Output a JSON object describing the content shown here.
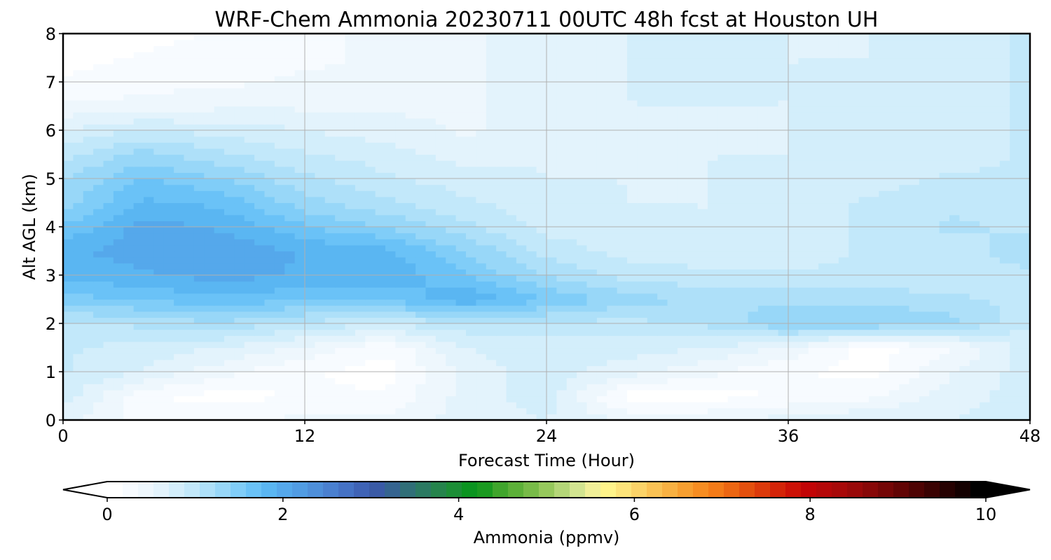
{
  "chart_data": {
    "type": "heatmap",
    "title": "WRF-Chem Ammonia  20230711 00UTC 48h fcst at Houston UH",
    "xlabel": "Forecast Time (Hour)",
    "ylabel": "Alt AGL (km)",
    "xlim": [
      0,
      48
    ],
    "ylim": [
      0,
      8
    ],
    "xticks": [
      "0",
      "12",
      "24",
      "36",
      "48"
    ],
    "yticks": [
      "0",
      "1",
      "2",
      "3",
      "4",
      "5",
      "6",
      "7",
      "8"
    ],
    "grid": true,
    "x": [
      0,
      4,
      8,
      12,
      16,
      20,
      24,
      28,
      32,
      36,
      40,
      44,
      48
    ],
    "y": [
      0,
      0.5,
      1,
      1.5,
      2,
      2.5,
      3,
      3.5,
      4,
      4.5,
      5,
      5.5,
      6,
      6.5,
      7,
      7.5,
      8
    ],
    "z": [
      [
        0.6,
        0.3,
        0.3,
        0.4,
        0.4,
        0.6,
        0.7,
        0.5,
        0.5,
        0.6,
        0.7,
        0.7,
        0.8
      ],
      [
        0.8,
        0.2,
        0.1,
        0.2,
        0.2,
        0.6,
        0.8,
        0.1,
        0.1,
        0.2,
        0.3,
        0.6,
        0.8
      ],
      [
        0.9,
        0.7,
        0.4,
        0.2,
        0.1,
        0.6,
        0.8,
        0.6,
        0.4,
        0.2,
        0.1,
        0.5,
        0.8
      ],
      [
        0.9,
        0.8,
        0.7,
        0.5,
        0.2,
        0.7,
        0.8,
        0.8,
        0.7,
        0.5,
        0.1,
        0.3,
        0.8
      ],
      [
        1.0,
        1.1,
        1.2,
        1.0,
        0.9,
        1.0,
        1.0,
        1.0,
        1.1,
        1.4,
        1.4,
        1.3,
        0.9
      ],
      [
        1.5,
        1.6,
        1.7,
        1.6,
        1.6,
        1.9,
        1.6,
        1.3,
        1.2,
        1.2,
        1.2,
        1.1,
        1.0
      ],
      [
        1.8,
        1.9,
        2.0,
        1.9,
        1.9,
        1.6,
        1.2,
        1.0,
        0.9,
        0.9,
        0.9,
        0.9,
        1.0
      ],
      [
        1.9,
        2.0,
        2.1,
        1.9,
        1.8,
        1.4,
        1.0,
        0.8,
        0.8,
        0.8,
        0.9,
        0.9,
        1.2
      ],
      [
        1.6,
        2.0,
        1.9,
        1.6,
        1.4,
        1.1,
        0.8,
        0.8,
        0.7,
        0.8,
        0.9,
        1.1,
        1.0
      ],
      [
        1.3,
        1.8,
        1.7,
        1.3,
        1.1,
        0.9,
        0.8,
        0.7,
        0.7,
        0.8,
        0.9,
        1.0,
        0.9
      ],
      [
        1.2,
        1.6,
        1.4,
        1.1,
        0.9,
        0.8,
        0.7,
        0.7,
        0.7,
        0.8,
        0.8,
        0.9,
        0.9
      ],
      [
        1.0,
        1.3,
        1.1,
        0.9,
        0.8,
        0.6,
        0.7,
        0.7,
        0.7,
        0.7,
        0.8,
        0.8,
        0.9
      ],
      [
        0.7,
        0.9,
        0.8,
        0.7,
        0.6,
        0.5,
        0.6,
        0.7,
        0.7,
        0.7,
        0.8,
        0.8,
        0.9
      ],
      [
        0.4,
        0.4,
        0.5,
        0.5,
        0.5,
        0.5,
        0.6,
        0.7,
        0.7,
        0.7,
        0.8,
        0.8,
        0.9
      ],
      [
        0.2,
        0.3,
        0.3,
        0.4,
        0.4,
        0.5,
        0.6,
        0.7,
        0.8,
        0.7,
        0.8,
        0.8,
        0.9
      ],
      [
        0.1,
        0.2,
        0.3,
        0.3,
        0.4,
        0.5,
        0.6,
        0.7,
        0.8,
        0.7,
        0.7,
        0.8,
        0.9
      ],
      [
        0.1,
        0.1,
        0.2,
        0.3,
        0.4,
        0.5,
        0.6,
        0.7,
        0.8,
        0.7,
        0.7,
        0.8,
        0.9
      ]
    ],
    "colorbar": {
      "label": "Ammonia  (ppmv)",
      "min": 0,
      "max": 10,
      "ticks": [
        "0",
        "2",
        "4",
        "6",
        "8",
        "10"
      ],
      "extend": "both",
      "colors": [
        "#ffffff",
        "#f7fbff",
        "#eef7fd",
        "#e3f3fc",
        "#d3eefb",
        "#c2e8fa",
        "#aee0f9",
        "#98d7f8",
        "#80cdf8",
        "#6ac2f7",
        "#5ab6f2",
        "#55a8eb",
        "#519ce3",
        "#4e8fda",
        "#4a80d0",
        "#4572c5",
        "#3f63b6",
        "#3a5aa6",
        "#356490",
        "#306f78",
        "#2b7a62",
        "#25844c",
        "#1c8e36",
        "#0b9420",
        "#1a9a20",
        "#40a52c",
        "#5cb038",
        "#78bb48",
        "#96c85c",
        "#b4d678",
        "#d2e490",
        "#f0ef98",
        "#fff48a",
        "#fde47a",
        "#fbd368",
        "#fac254",
        "#f8b142",
        "#f79f30",
        "#f68d22",
        "#f47b18",
        "#ec6612",
        "#e4500e",
        "#dc3a0b",
        "#d42408",
        "#cc1106",
        "#c20406",
        "#b50708",
        "#a80909",
        "#990909",
        "#880808",
        "#750606",
        "#620404",
        "#4e0303",
        "#3a0202",
        "#260101",
        "#140000",
        "#000000"
      ]
    }
  }
}
